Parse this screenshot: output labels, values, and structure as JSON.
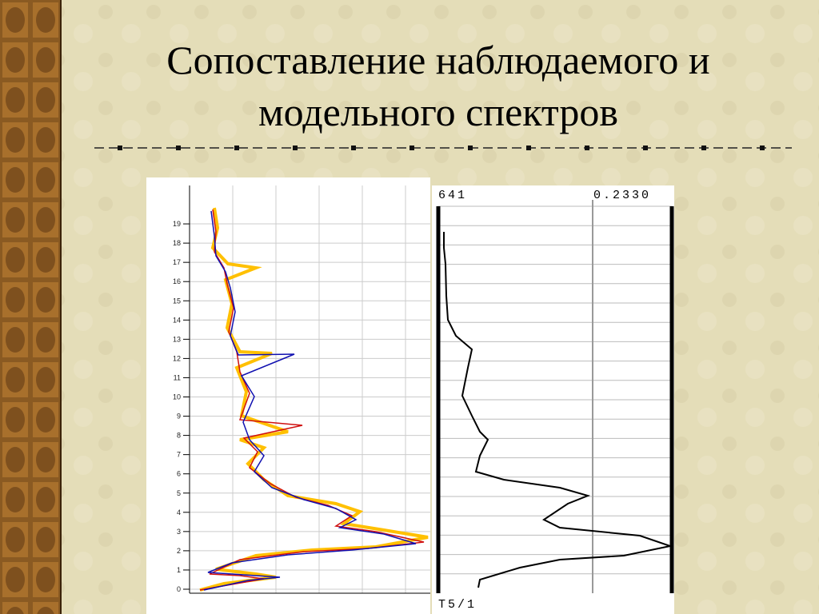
{
  "title_lines": [
    "Сопоставление наблюдаемого и",
    "модельного спектров"
  ],
  "left_plot": {
    "y_labels": [
      "0",
      "1",
      "2",
      "3",
      "4",
      "5",
      "6",
      "7",
      "8",
      "9",
      "10",
      "11",
      "12",
      "13",
      "14",
      "15",
      "16",
      "17",
      "18",
      "19"
    ]
  },
  "right_plot": {
    "top_left": "641",
    "top_right": "0.2330",
    "bottom_left": "T5/1"
  }
}
